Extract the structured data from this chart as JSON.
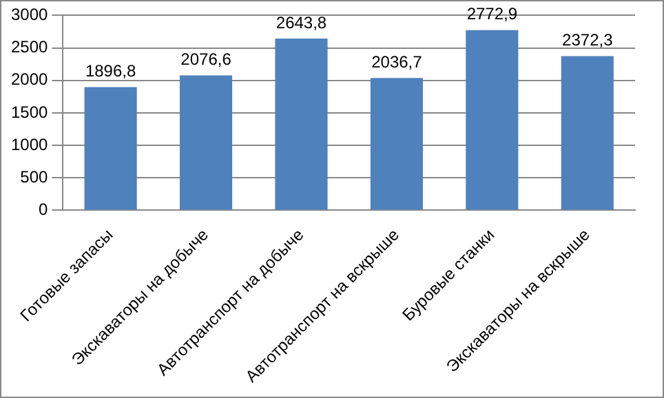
{
  "chart_data": {
    "type": "bar",
    "categories": [
      "Готовые запасы",
      "Экскаваторы на добыче",
      "Автотранспорт на добыче",
      "Автотранспорт на вскрыше",
      "Буровые станки",
      "Экскаваторы на вскрыше"
    ],
    "values": [
      1896.8,
      2076.6,
      2643.8,
      2036.7,
      2772.9,
      2372.3
    ],
    "value_labels": [
      "1896,8",
      "2076,6",
      "2643,8",
      "2036,7",
      "2772,9",
      "2372,3"
    ],
    "color": "#4f81bd",
    "ylim": [
      0,
      3000
    ],
    "yticks": [
      0,
      500,
      1000,
      1500,
      2000,
      2500,
      3000
    ],
    "grid": "y",
    "legend": false
  }
}
